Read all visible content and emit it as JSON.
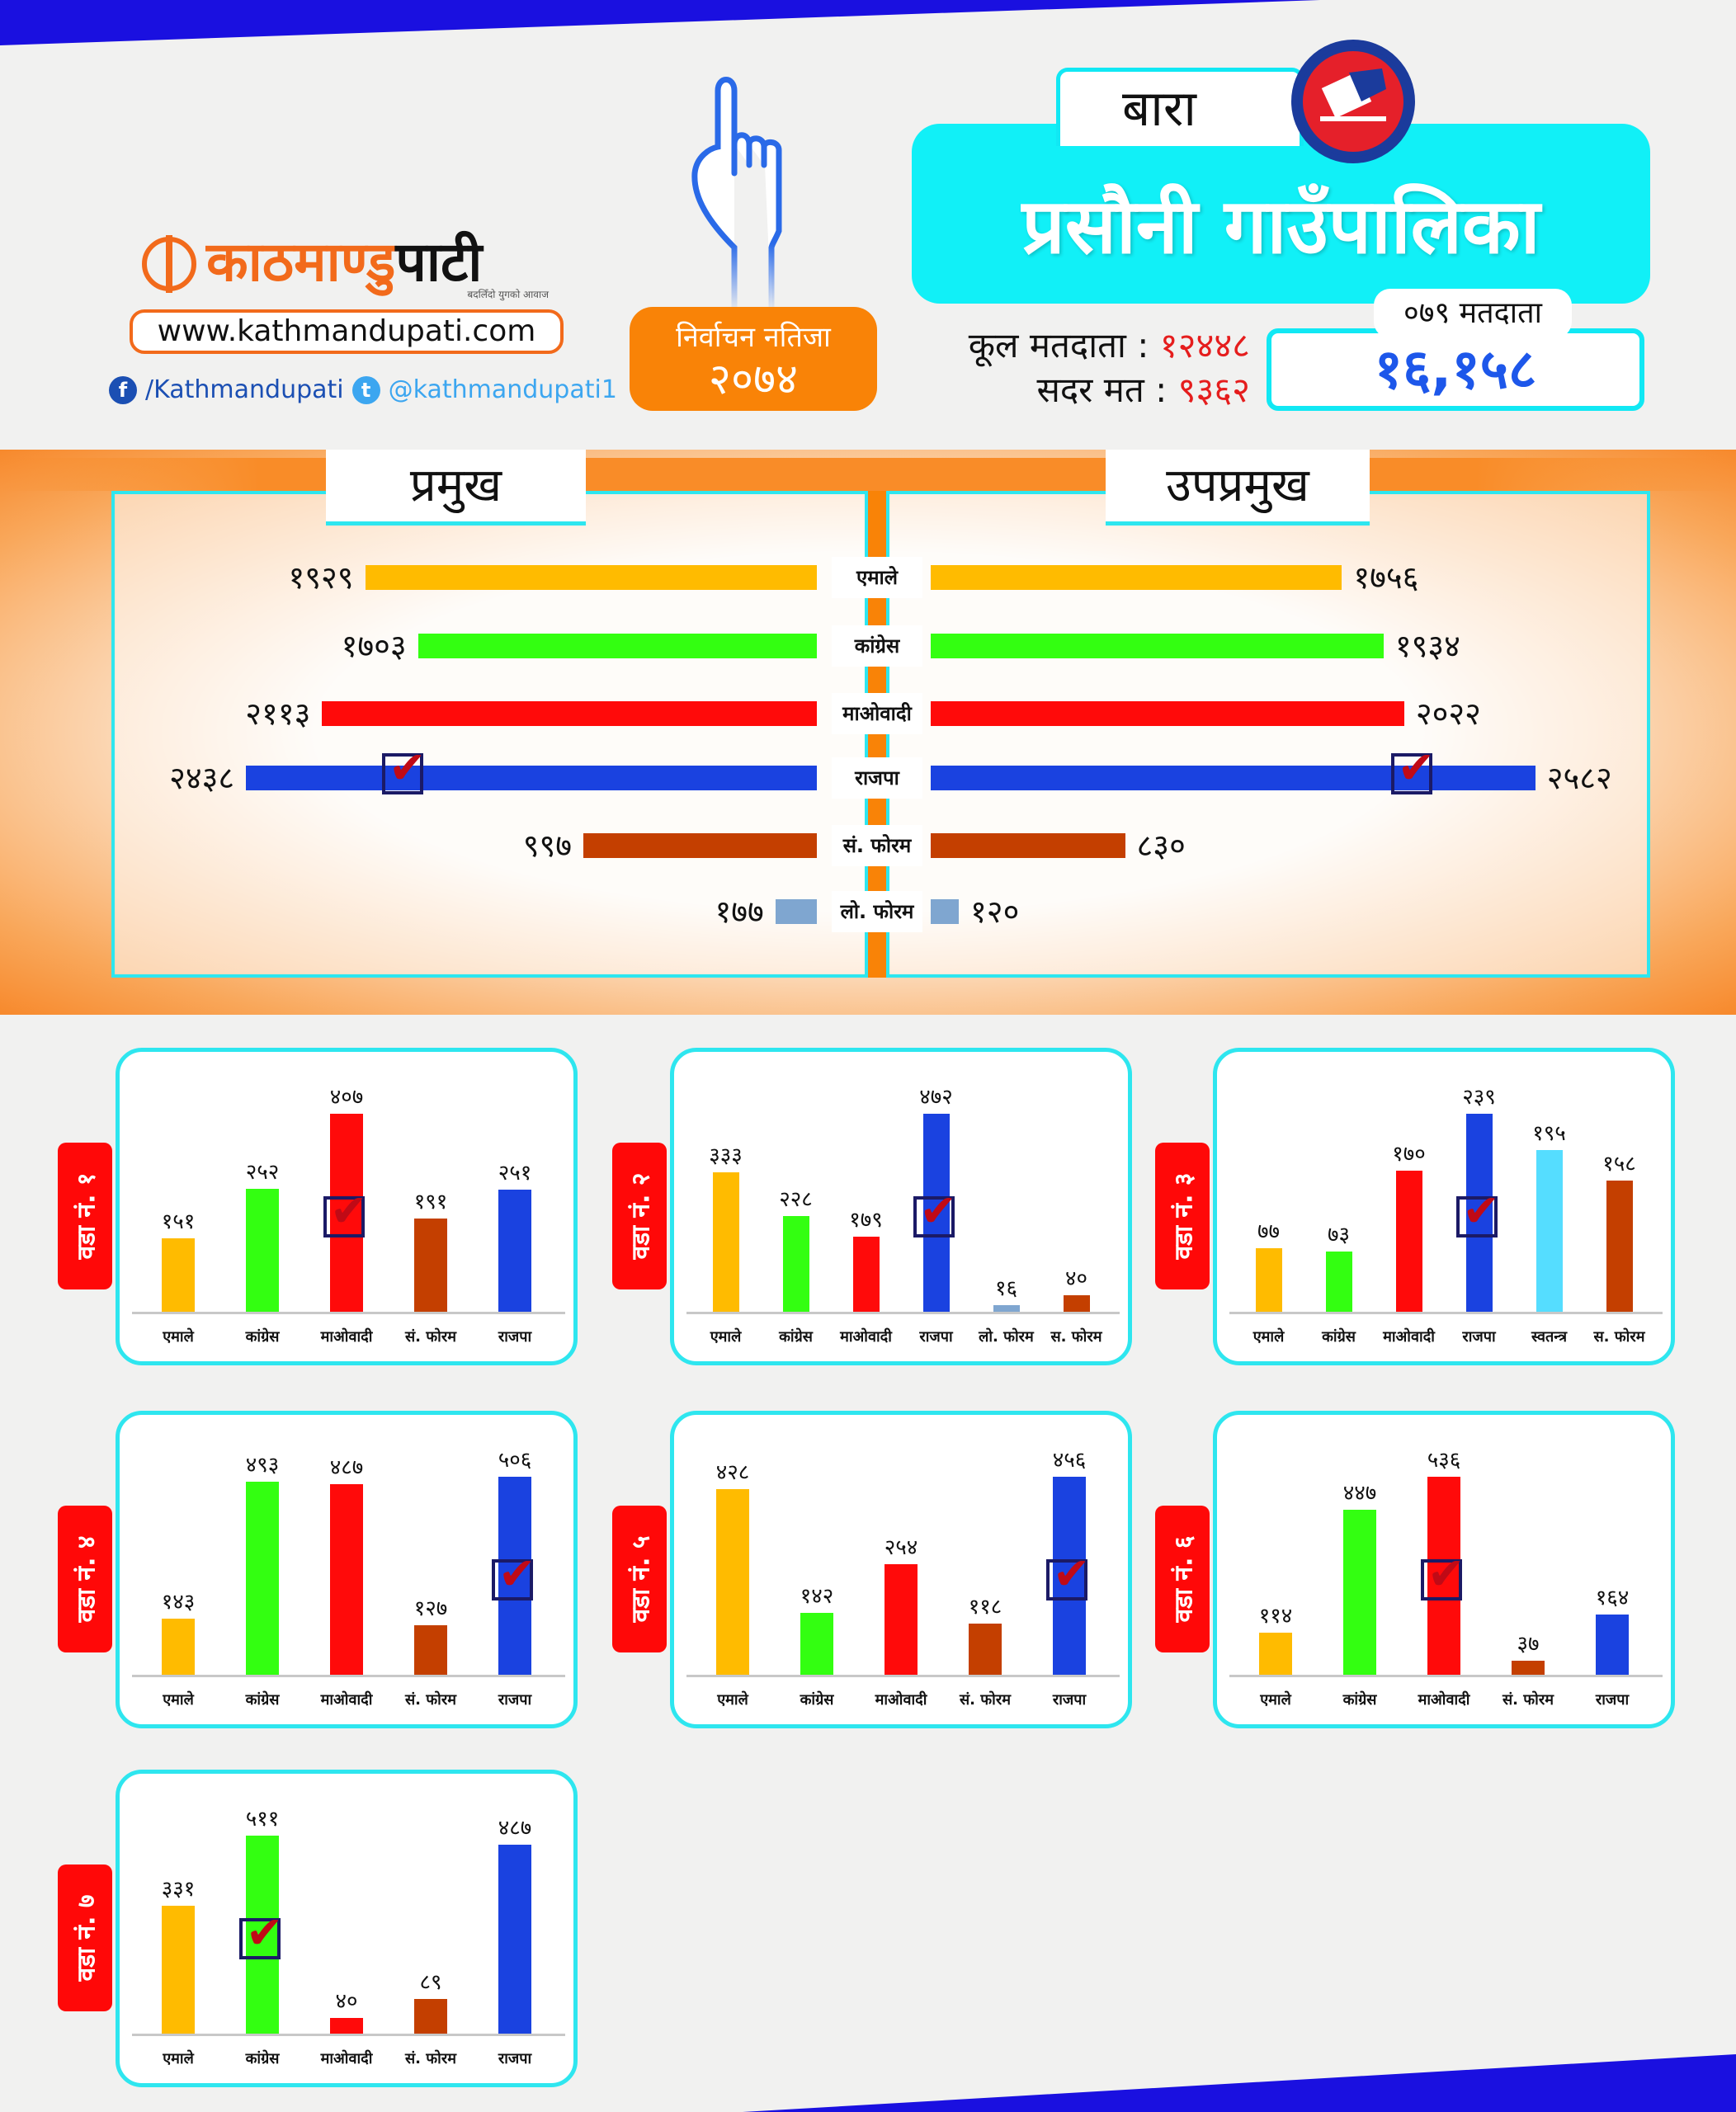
{
  "brand": {
    "name_orange": "काठमाण्डु",
    "name_black": "पाटी",
    "tagline": "बदलिँदो युगको आवाज",
    "url": "www.kathmandupati.com",
    "facebook": "/Kathmandupati",
    "twitter": "@kathmandupati1"
  },
  "badge": {
    "line1": "निर्वाचन नतिजा",
    "line2": "२०७४"
  },
  "district": "बारा",
  "title": "प्रसौनी गाउँपालिका",
  "stats": {
    "total_label": "कूल मतदाता :",
    "total_value": "१२४४८",
    "valid_label": "सदर मत :",
    "valid_value": "९३६२"
  },
  "voters_079": {
    "label": "०७९ मतदाता",
    "value": "१६,१५८"
  },
  "colors": {
    "एमाले": "#ffbb00",
    "कांग्रेस": "#33ff11",
    "माओवादी": "#ff0a0a",
    "राजपा": "#1a42e0",
    "सं. फोरम": "#c43f00",
    "लो. फोरम": "#7fa6d0",
    "स्वतन्त्र": "#55ddff"
  },
  "chart_data": [
    {
      "type": "bar",
      "title": "प्रमुख / उपप्रमुख",
      "left_title": "प्रमुख",
      "right_title": "उपप्रमुख",
      "categories": [
        "एमाले",
        "कांग्रेस",
        "माओवादी",
        "राजपा",
        "सं. फोरम",
        "लो. फोरम"
      ],
      "series": [
        {
          "name": "प्रमुख",
          "values": [
            1929,
            1703,
            2113,
            2438,
            997,
            177
          ],
          "labels": [
            "१९२९",
            "१७०३",
            "२११३",
            "२४३८",
            "९९७",
            "१७७"
          ],
          "winner": 3
        },
        {
          "name": "उपप्रमुख",
          "values": [
            1756,
            1934,
            2022,
            2582,
            830,
            120
          ],
          "labels": [
            "१७५६",
            "१९३४",
            "२०२२",
            "२५८२",
            "८३०",
            "१२०"
          ],
          "winner": 3
        }
      ]
    },
    {
      "type": "bar",
      "title": "वडा नं. १",
      "categories": [
        "एमाले",
        "कांग्रेस",
        "माओवादी",
        "सं. फोरम",
        "राजपा"
      ],
      "values": [
        151,
        252,
        407,
        191,
        251
      ],
      "labels": [
        "१५१",
        "२५२",
        "४०७",
        "१९१",
        "२५१"
      ],
      "winner": 2
    },
    {
      "type": "bar",
      "title": "वडा नं. २",
      "categories": [
        "एमाले",
        "कांग्रेस",
        "माओवादी",
        "राजपा",
        "लो. फोरम",
        "स. फोरम"
      ],
      "values": [
        333,
        228,
        179,
        472,
        16,
        40
      ],
      "labels": [
        "३३३",
        "२२८",
        "१७९",
        "४७२",
        "१६",
        "४०"
      ],
      "winner": 3
    },
    {
      "type": "bar",
      "title": "वडा नं. ३",
      "categories": [
        "एमाले",
        "कांग्रेस",
        "माओवादी",
        "राजपा",
        "स्वतन्त्र",
        "स. फोरम"
      ],
      "values": [
        77,
        73,
        170,
        239,
        195,
        158
      ],
      "labels": [
        "७७",
        "७३",
        "१७०",
        "२३९",
        "१९५",
        "१५८"
      ],
      "winner": 3
    },
    {
      "type": "bar",
      "title": "वडा नं. ४",
      "categories": [
        "एमाले",
        "कांग्रेस",
        "माओवादी",
        "सं. फोरम",
        "राजपा"
      ],
      "values": [
        143,
        493,
        487,
        127,
        506
      ],
      "labels": [
        "१४३",
        "४९३",
        "४८७",
        "१२७",
        "५०६"
      ],
      "winner": 4
    },
    {
      "type": "bar",
      "title": "वडा नं. ५",
      "categories": [
        "एमाले",
        "कांग्रेस",
        "माओवादी",
        "सं. फोरम",
        "राजपा"
      ],
      "values": [
        428,
        142,
        254,
        118,
        456
      ],
      "labels": [
        "४२८",
        "१४२",
        "२५४",
        "११८",
        "४५६"
      ],
      "winner": 4
    },
    {
      "type": "bar",
      "title": "वडा नं. ६",
      "categories": [
        "एमाले",
        "कांग्रेस",
        "माओवादी",
        "सं. फोरम",
        "राजपा"
      ],
      "values": [
        114,
        447,
        536,
        37,
        164
      ],
      "labels": [
        "११४",
        "४४७",
        "५३६",
        "३७",
        "१६४"
      ],
      "winner": 2
    },
    {
      "type": "bar",
      "title": "वडा नं. ७",
      "categories": [
        "एमाले",
        "कांग्रेस",
        "माओवादी",
        "सं. फोरम",
        "राजपा"
      ],
      "values": [
        331,
        511,
        40,
        89,
        487
      ],
      "labels": [
        "३३१",
        "५११",
        "४०",
        "८९",
        "४८७"
      ],
      "winner": 1
    }
  ]
}
